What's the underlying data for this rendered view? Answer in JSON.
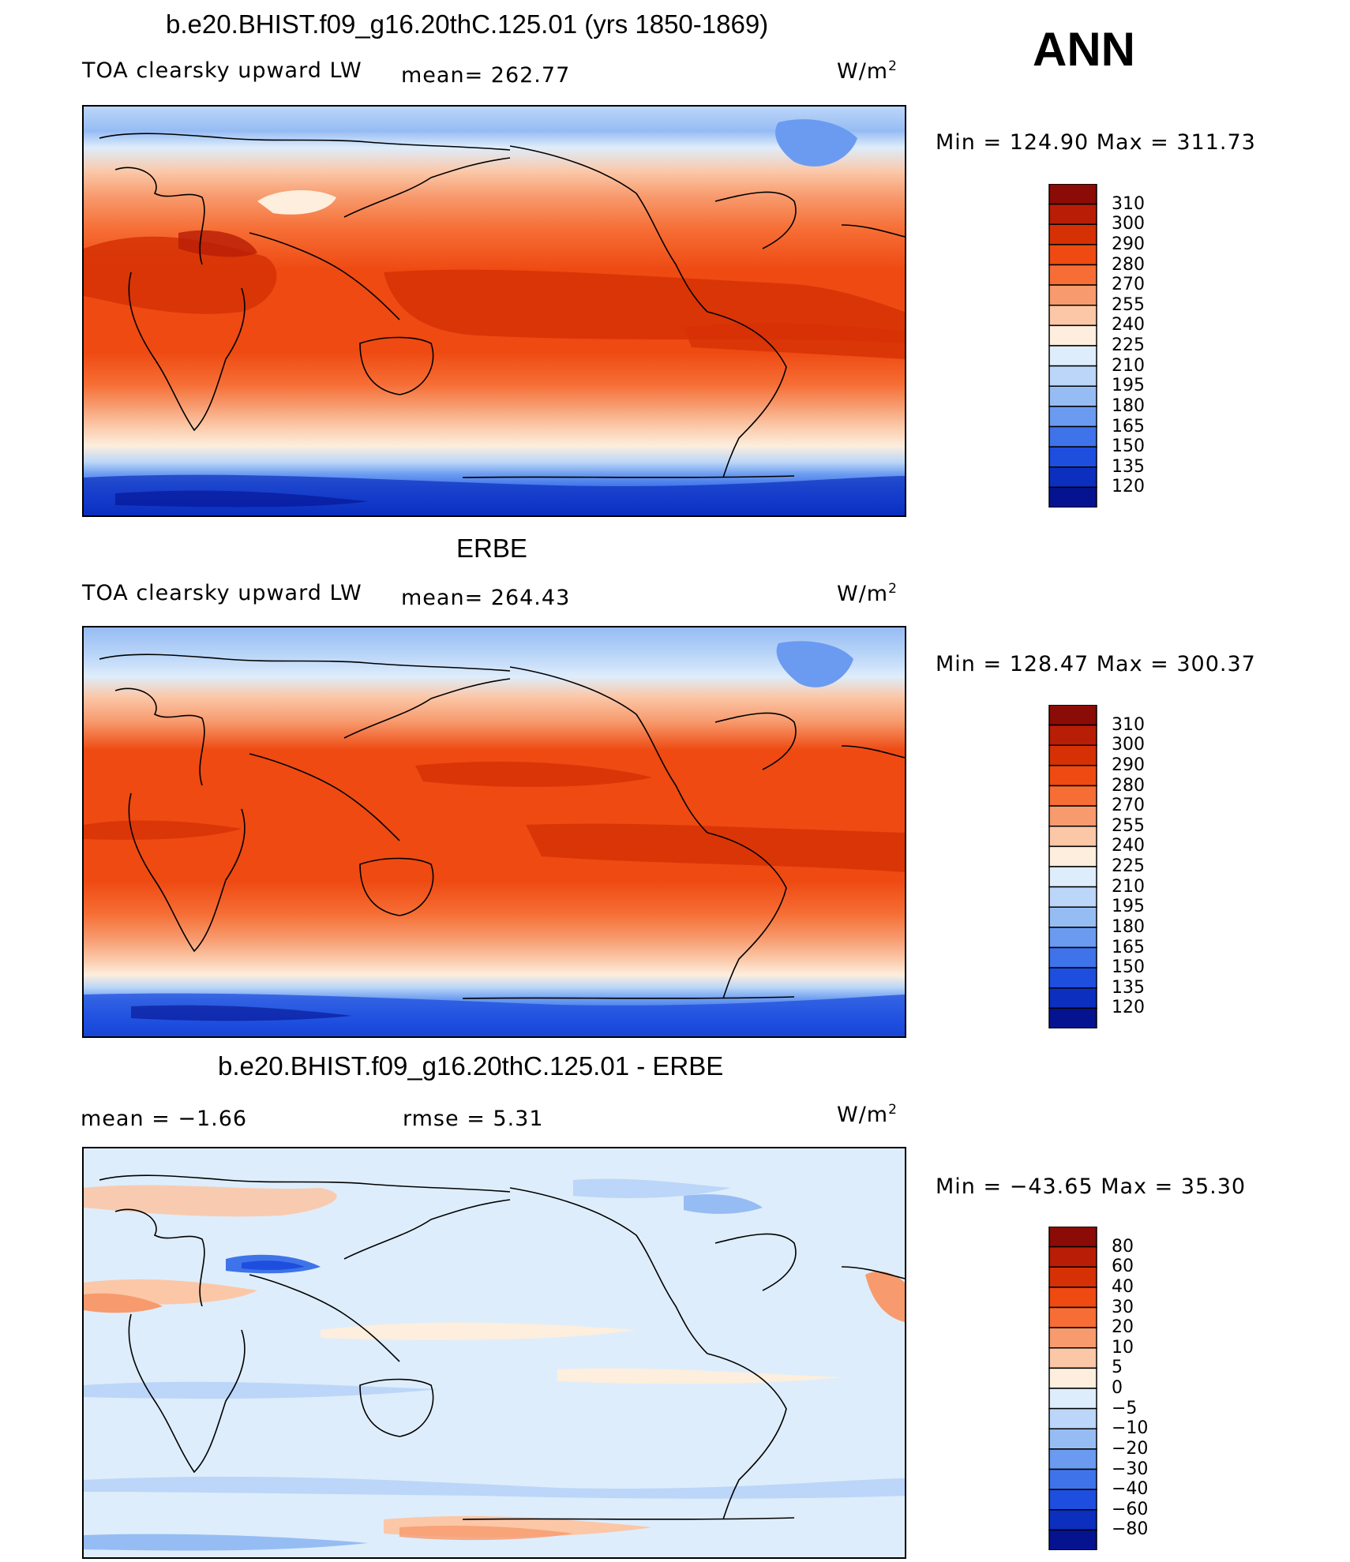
{
  "annotation": "ANN",
  "panels": [
    {
      "title": "b.e20.BHIST.f09_g16.20thC.125.01 (yrs 1850-1869)",
      "left_label": "TOA clearsky upward LW",
      "center_label": "mean= 262.77",
      "units": "W/m",
      "units_sup": "2",
      "minmax": "Min  =  124.90  Max  =  311.73",
      "colorbar": {
        "labels": [
          "310",
          "300",
          "290",
          "280",
          "270",
          "255",
          "240",
          "225",
          "210",
          "195",
          "180",
          "165",
          "150",
          "135",
          "120"
        ],
        "colors": [
          "#8b0b06",
          "#b81d06",
          "#d63105",
          "#ee4a12",
          "#f66e35",
          "#f79a6d",
          "#fbc7a7",
          "#fdeedd",
          "#deedfb",
          "#bbd6f8",
          "#96bcf4",
          "#6b9bf0",
          "#3f73ea",
          "#1e4ede",
          "#0c2fbf",
          "#051390"
        ]
      }
    },
    {
      "title": "ERBE",
      "left_label": "TOA clearsky upward LW",
      "center_label": "mean= 264.43",
      "units": "W/m",
      "units_sup": "2",
      "minmax": "Min  =  128.47  Max  =  300.37",
      "colorbar": {
        "labels": [
          "310",
          "300",
          "290",
          "280",
          "270",
          "255",
          "240",
          "225",
          "210",
          "195",
          "180",
          "165",
          "150",
          "135",
          "120"
        ],
        "colors": [
          "#8b0b06",
          "#b81d06",
          "#d63105",
          "#ee4a12",
          "#f66e35",
          "#f79a6d",
          "#fbc7a7",
          "#fdeedd",
          "#deedfb",
          "#bbd6f8",
          "#96bcf4",
          "#6b9bf0",
          "#3f73ea",
          "#1e4ede",
          "#0c2fbf",
          "#051390"
        ]
      }
    },
    {
      "title": "b.e20.BHIST.f09_g16.20thC.125.01 - ERBE",
      "left_label": "mean =    −1.66",
      "center_label": "rmse =    5.31",
      "units": "W/m",
      "units_sup": "2",
      "minmax": "Min  =  −43.65  Max  =   35.30",
      "colorbar": {
        "labels": [
          "80",
          "60",
          "40",
          "30",
          "20",
          "10",
          "5",
          "0",
          "−5",
          "−10",
          "−20",
          "−30",
          "−40",
          "−60",
          "−80"
        ],
        "colors": [
          "#8b0b06",
          "#b81d06",
          "#d63105",
          "#ee4a12",
          "#f66e35",
          "#f79a6d",
          "#fbc7a7",
          "#fdeedd",
          "#deedfb",
          "#bbd6f8",
          "#96bcf4",
          "#6b9bf0",
          "#3f73ea",
          "#1e4ede",
          "#0c2fbf",
          "#051390"
        ]
      }
    }
  ]
}
